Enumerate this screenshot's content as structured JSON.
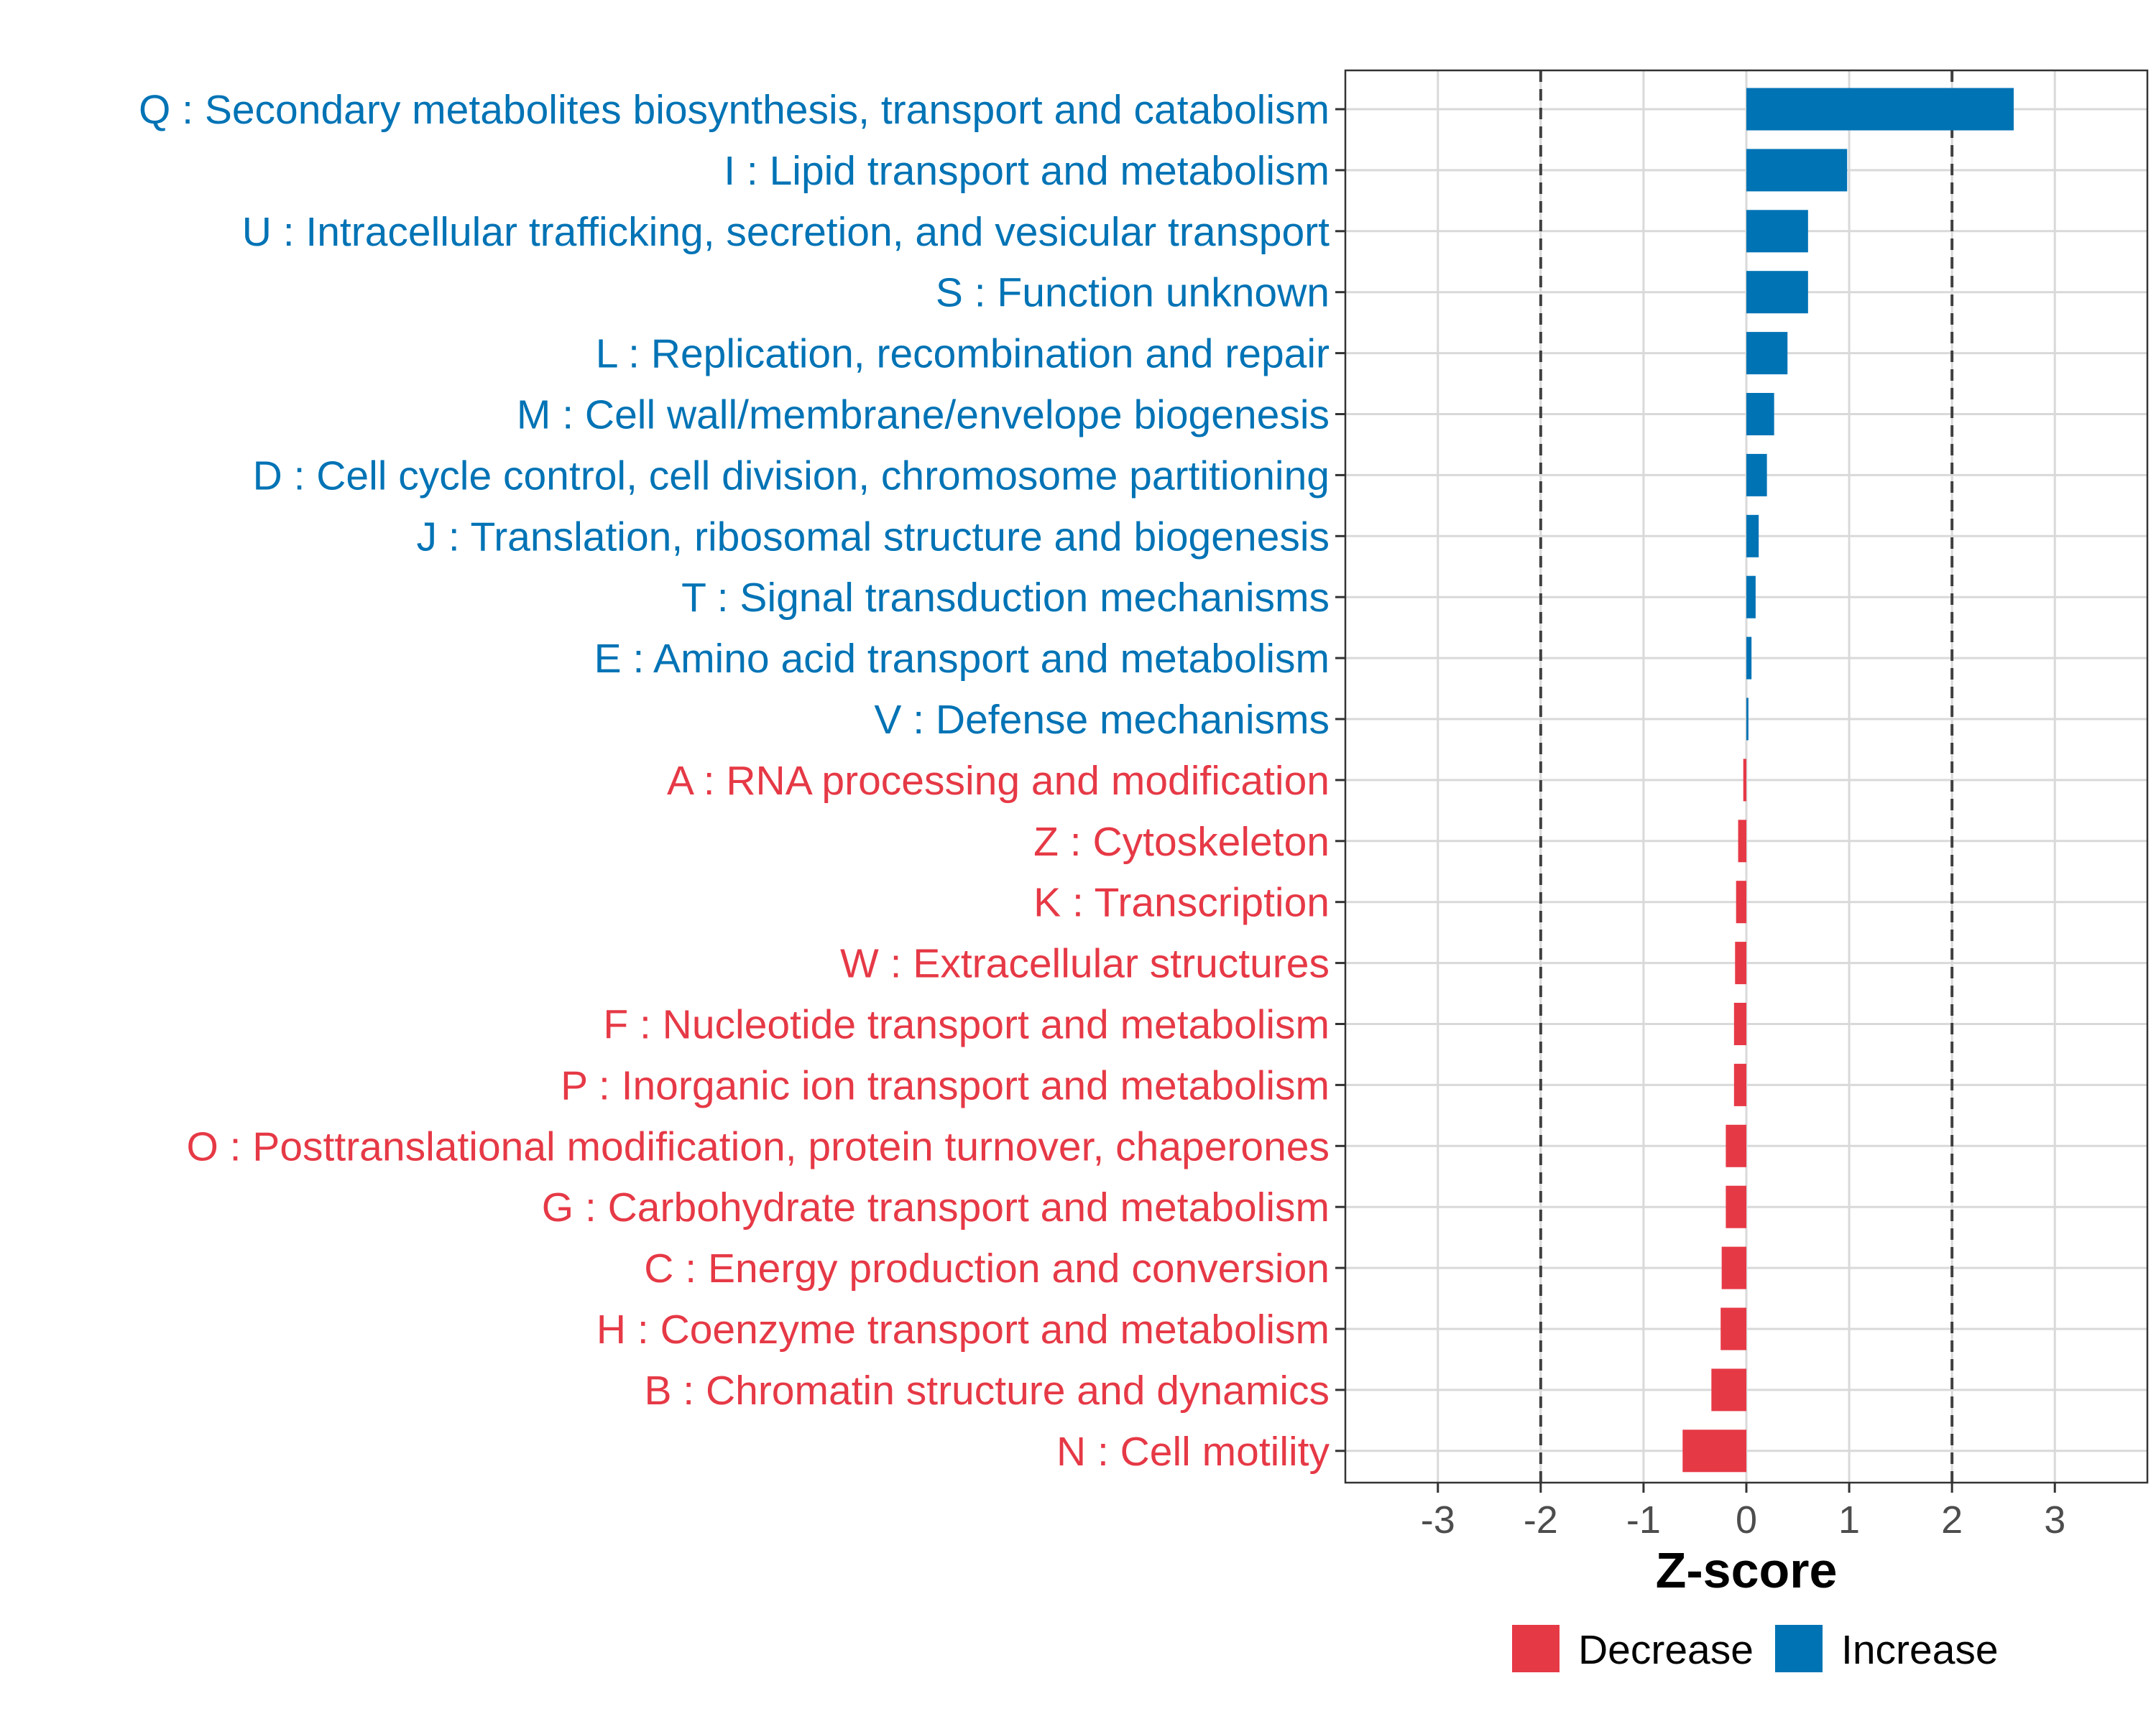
{
  "chart_data": {
    "type": "bar",
    "orientation": "horizontal",
    "title": "",
    "xlabel": "Z-score",
    "ylabel": "",
    "xlim": [
      -3.9,
      3.9
    ],
    "xticks": [
      -3,
      -2,
      -1,
      0,
      1,
      2,
      3
    ],
    "xtick_labels": [
      "-3",
      "-2",
      "-1",
      "0",
      "1",
      "2",
      "3"
    ],
    "reference_lines": [
      -2,
      2
    ],
    "grid": true,
    "legend_position": "bottom",
    "colors": {
      "Increase": "#0073b5",
      "Decrease": "#e63946"
    },
    "legend": [
      {
        "key": "Decrease",
        "label": "Decrease"
      },
      {
        "key": "Increase",
        "label": "Increase"
      }
    ],
    "categories": [
      "Q : Secondary metabolites biosynthesis, transport and catabolism",
      "I : Lipid transport and metabolism",
      "U : Intracellular trafficking, secretion, and vesicular transport",
      "S : Function unknown",
      "L : Replication, recombination and repair",
      "M : Cell wall/membrane/envelope biogenesis",
      "D : Cell cycle control, cell division, chromosome partitioning",
      "J : Translation, ribosomal structure and biogenesis",
      "T : Signal transduction mechanisms",
      "E : Amino acid transport and metabolism",
      "V : Defense mechanisms",
      "A : RNA processing and modification",
      "Z : Cytoskeleton",
      "K : Transcription",
      "W : Extracellular structures",
      "F : Nucleotide transport and metabolism",
      "P : Inorganic ion transport and metabolism",
      "O : Posttranslational modification, protein turnover, chaperones",
      "G : Carbohydrate transport and metabolism",
      "C : Energy production and conversion",
      "H : Coenzyme transport and metabolism",
      "B : Chromatin structure and dynamics",
      "N : Cell motility"
    ],
    "values": [
      2.6,
      0.98,
      0.6,
      0.6,
      0.4,
      0.27,
      0.2,
      0.12,
      0.09,
      0.05,
      0.02,
      -0.03,
      -0.08,
      -0.1,
      -0.11,
      -0.12,
      -0.12,
      -0.2,
      -0.2,
      -0.24,
      -0.25,
      -0.34,
      -0.62
    ],
    "groups": [
      "Increase",
      "Increase",
      "Increase",
      "Increase",
      "Increase",
      "Increase",
      "Increase",
      "Increase",
      "Increase",
      "Increase",
      "Increase",
      "Decrease",
      "Decrease",
      "Decrease",
      "Decrease",
      "Decrease",
      "Decrease",
      "Decrease",
      "Decrease",
      "Decrease",
      "Decrease",
      "Decrease",
      "Decrease"
    ]
  }
}
